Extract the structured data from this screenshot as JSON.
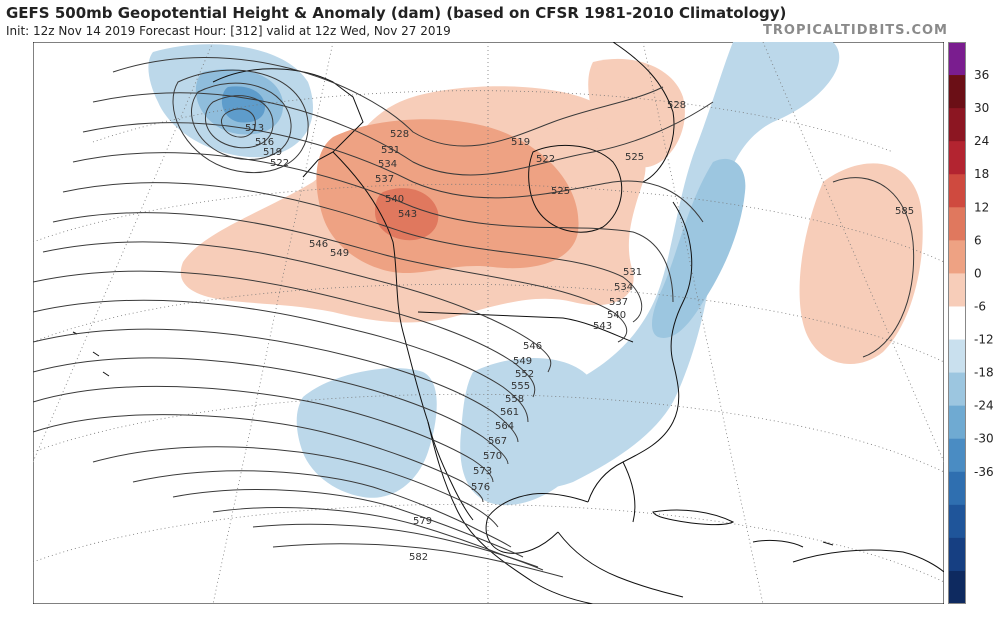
{
  "header": {
    "title": "GEFS 500mb Geopotential Height & Anomaly (dam) (based on CFSR 1981-2010 Climatology)",
    "subtitle": "Init: 12z Nov 14 2019   Forecast Hour: [312]   valid at 12z Wed, Nov 27 2019",
    "brand": "TROPICALTIDBITS.COM"
  },
  "colorbar": {
    "ticks": [
      "36",
      "30",
      "24",
      "18",
      "12",
      "6",
      "0",
      "-6",
      "-12",
      "-18",
      "-24",
      "-30",
      "-36"
    ],
    "colors": [
      "#7a1d8f",
      "#6b0f16",
      "#8c1622",
      "#b32430",
      "#cf4a3f",
      "#e0785e",
      "#eea283",
      "#f7cdb9",
      "#ffffff",
      "#c9e0ee",
      "#9cc6e0",
      "#6faad2",
      "#4a8cc3",
      "#2f6fb0",
      "#1f559a",
      "#163f82",
      "#0e2a60"
    ]
  },
  "contours": {
    "labels": [
      "513",
      "516",
      "519",
      "522",
      "528",
      "531",
      "534",
      "537",
      "540",
      "543",
      "546",
      "549",
      "519",
      "522",
      "525",
      "528",
      "525",
      "531",
      "534",
      "537",
      "540",
      "543",
      "546",
      "549",
      "552",
      "555",
      "558",
      "561",
      "564",
      "567",
      "570",
      "573",
      "576",
      "579",
      "582",
      "585"
    ]
  }
}
